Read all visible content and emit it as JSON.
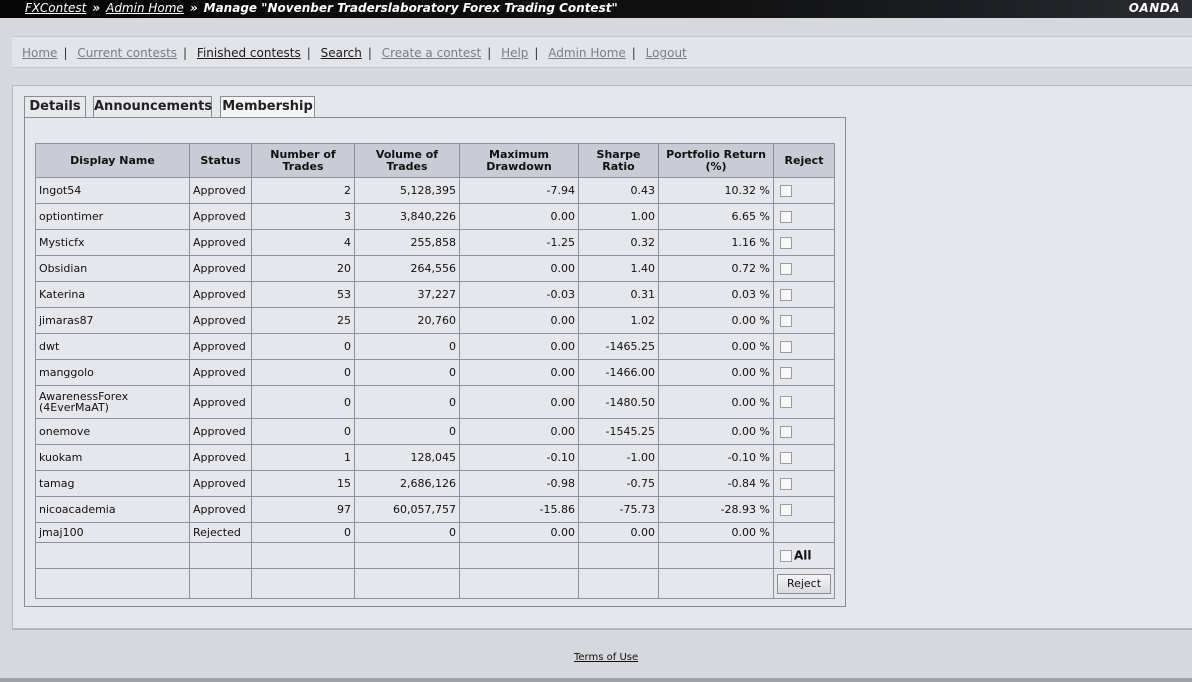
{
  "breadcrumb": {
    "root": "FXContest",
    "admin": "Admin Home",
    "current": "Manage \"Novenber Traderslaboratory Forex Trading Contest\"",
    "separator": "»"
  },
  "brand": "OANDA",
  "nav": {
    "items": [
      {
        "label": "Home"
      },
      {
        "label": "Current contests"
      },
      {
        "label": "Finished contests"
      },
      {
        "label": "Search"
      },
      {
        "label": "Create a contest"
      },
      {
        "label": "Help"
      },
      {
        "label": "Admin Home"
      },
      {
        "label": "Logout"
      }
    ]
  },
  "tabs": [
    {
      "label": "Details"
    },
    {
      "label": "Announcements"
    },
    {
      "label": "Membership"
    }
  ],
  "table": {
    "headers": {
      "name": "Display Name",
      "status": "Status",
      "trades_1": "Number of",
      "trades_2": "Trades",
      "volume_1": "Volume of",
      "volume_2": "Trades",
      "drawdown_1": "Maximum",
      "drawdown_2": "Drawdown",
      "sharpe_1": "Sharpe",
      "sharpe_2": "Ratio",
      "return_1": "Portfolio Return",
      "return_2": "(%)",
      "reject": "Reject"
    },
    "rows": [
      {
        "name": "Ingot54",
        "name2": "",
        "status": "Approved",
        "trades": "2",
        "volume": "5,128,395",
        "drawdown": "-7.94",
        "sharpe": "0.43",
        "ret": "10.32 %"
      },
      {
        "name": "optiontimer",
        "name2": "",
        "status": "Approved",
        "trades": "3",
        "volume": "3,840,226",
        "drawdown": "0.00",
        "sharpe": "1.00",
        "ret": "6.65 %"
      },
      {
        "name": "Mysticfx",
        "name2": "",
        "status": "Approved",
        "trades": "4",
        "volume": "255,858",
        "drawdown": "-1.25",
        "sharpe": "0.32",
        "ret": "1.16 %"
      },
      {
        "name": "Obsidian",
        "name2": "",
        "status": "Approved",
        "trades": "20",
        "volume": "264,556",
        "drawdown": "0.00",
        "sharpe": "1.40",
        "ret": "0.72 %"
      },
      {
        "name": "Katerina",
        "name2": "",
        "status": "Approved",
        "trades": "53",
        "volume": "37,227",
        "drawdown": "-0.03",
        "sharpe": "0.31",
        "ret": "0.03 %"
      },
      {
        "name": "jimaras87",
        "name2": "",
        "status": "Approved",
        "trades": "25",
        "volume": "20,760",
        "drawdown": "0.00",
        "sharpe": "1.02",
        "ret": "0.00 %"
      },
      {
        "name": "dwt",
        "name2": "",
        "status": "Approved",
        "trades": "0",
        "volume": "0",
        "drawdown": "0.00",
        "sharpe": "-1465.25",
        "ret": "0.00 %"
      },
      {
        "name": "manggolo",
        "name2": "",
        "status": "Approved",
        "trades": "0",
        "volume": "0",
        "drawdown": "0.00",
        "sharpe": "-1466.00",
        "ret": "0.00 %"
      },
      {
        "name": "AwarenessForex",
        "name2": "(4EverMaAT)",
        "status": "Approved",
        "trades": "0",
        "volume": "0",
        "drawdown": "0.00",
        "sharpe": "-1480.50",
        "ret": "0.00 %"
      },
      {
        "name": "onemove",
        "name2": "",
        "status": "Approved",
        "trades": "0",
        "volume": "0",
        "drawdown": "0.00",
        "sharpe": "-1545.25",
        "ret": "0.00 %"
      },
      {
        "name": "kuokam",
        "name2": "",
        "status": "Approved",
        "trades": "1",
        "volume": "128,045",
        "drawdown": "-0.10",
        "sharpe": "-1.00",
        "ret": "-0.10 %"
      },
      {
        "name": "tamag",
        "name2": "",
        "status": "Approved",
        "trades": "15",
        "volume": "2,686,126",
        "drawdown": "-0.98",
        "sharpe": "-0.75",
        "ret": "-0.84 %"
      },
      {
        "name": "nicoacademia",
        "name2": "",
        "status": "Approved",
        "trades": "97",
        "volume": "60,057,757",
        "drawdown": "-15.86",
        "sharpe": "-75.73",
        "ret": "-28.93 %"
      },
      {
        "name": "jmaj100",
        "name2": "",
        "status": "Rejected",
        "trades": "0",
        "volume": "0",
        "drawdown": "0.00",
        "sharpe": "0.00",
        "ret": "0.00 %"
      }
    ],
    "all_label": "All",
    "reject_button": "Reject"
  },
  "footer": {
    "terms": "Terms of Use"
  }
}
